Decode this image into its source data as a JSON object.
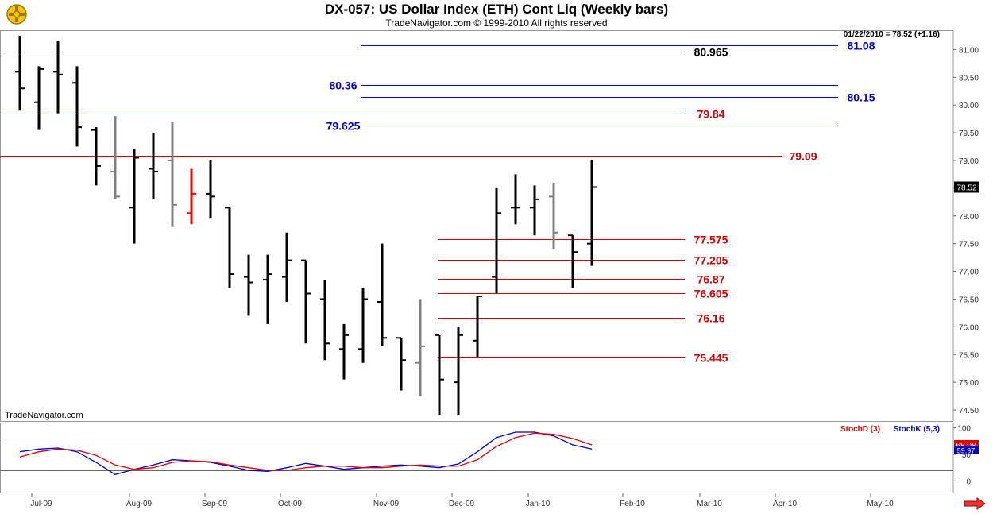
{
  "header": {
    "title": "DX-057:  US Dollar Index (ETH) Cont Liq  (Weekly bars)",
    "copyright": "TradeNavigator.com © 1999-2010 All rights reserved",
    "last_quote": "01/22/2010 = 78.52 (+1.16)",
    "watermark": "TradeNavigator.com"
  },
  "colors": {
    "up": "#000000",
    "neutral": "#808080",
    "highlight": "#ff0000",
    "blue_level": "#0000cc",
    "red_level": "#cc0000",
    "stoch_d": "#dd0000",
    "stoch_k": "#0000cc"
  },
  "chart_data": [
    {
      "type": "bar",
      "subtype": "ohlc",
      "ylim": [
        74.3,
        81.35
      ],
      "y_ticks": [
        74.5,
        75.0,
        75.5,
        76.0,
        76.5,
        77.0,
        77.5,
        78.0,
        78.5,
        79.0,
        79.5,
        80.0,
        80.5,
        81.0
      ],
      "y_tick_labels": [
        "74.50",
        "75.00",
        "75.50",
        "76.00",
        "76.50",
        "77.00",
        "77.50",
        "78.00",
        "78.50",
        "79.00",
        "79.50",
        "80.00",
        "80.50",
        "81.00"
      ],
      "x_axis_labels": [
        "Jul-09",
        "Aug-09",
        "Sep-09",
        "Oct-09",
        "Nov-09",
        "Dec-09",
        "Jan-10",
        "Feb-10",
        "Mar-10",
        "Apr-10",
        "May-10"
      ],
      "last_price_label": "78.52",
      "bars": [
        {
          "o": 80.6,
          "h": 81.25,
          "l": 79.9,
          "c": 80.3,
          "color": "up"
        },
        {
          "o": 80.05,
          "h": 80.7,
          "l": 79.55,
          "c": 80.65,
          "color": "up"
        },
        {
          "o": 80.6,
          "h": 81.15,
          "l": 79.85,
          "c": 80.55,
          "color": "up"
        },
        {
          "o": 80.4,
          "h": 80.7,
          "l": 79.25,
          "c": 79.6,
          "color": "up"
        },
        {
          "o": 79.55,
          "h": 79.6,
          "l": 78.55,
          "c": 78.9,
          "color": "up"
        },
        {
          "o": 78.8,
          "h": 79.8,
          "l": 78.3,
          "c": 78.35,
          "color": "neutral"
        },
        {
          "o": 78.15,
          "h": 79.2,
          "l": 77.5,
          "c": 79.05,
          "color": "up"
        },
        {
          "o": 78.85,
          "h": 79.5,
          "l": 78.3,
          "c": 78.8,
          "color": "up"
        },
        {
          "o": 79.0,
          "h": 79.7,
          "l": 77.8,
          "c": 78.2,
          "color": "neutral"
        },
        {
          "o": 78.05,
          "h": 78.85,
          "l": 77.85,
          "c": 78.4,
          "color": "highlight"
        },
        {
          "o": 78.4,
          "h": 79.0,
          "l": 77.95,
          "c": 78.35,
          "color": "up"
        },
        {
          "o": 78.15,
          "h": 78.15,
          "l": 76.7,
          "c": 76.95,
          "color": "up"
        },
        {
          "o": 76.9,
          "h": 77.3,
          "l": 76.2,
          "c": 76.8,
          "color": "up"
        },
        {
          "o": 76.85,
          "h": 77.3,
          "l": 76.05,
          "c": 76.95,
          "color": "up"
        },
        {
          "o": 76.9,
          "h": 77.7,
          "l": 76.45,
          "c": 77.2,
          "color": "up"
        },
        {
          "o": 77.2,
          "h": 77.2,
          "l": 75.7,
          "c": 76.6,
          "color": "up"
        },
        {
          "o": 76.5,
          "h": 76.85,
          "l": 75.4,
          "c": 75.7,
          "color": "up"
        },
        {
          "o": 75.6,
          "h": 76.05,
          "l": 75.05,
          "c": 75.85,
          "color": "up"
        },
        {
          "o": 75.6,
          "h": 76.7,
          "l": 75.35,
          "c": 76.5,
          "color": "up"
        },
        {
          "o": 76.45,
          "h": 77.5,
          "l": 75.65,
          "c": 75.8,
          "color": "up"
        },
        {
          "o": 75.8,
          "h": 75.8,
          "l": 74.85,
          "c": 75.4,
          "color": "up"
        },
        {
          "o": 75.35,
          "h": 76.5,
          "l": 74.75,
          "c": 75.65,
          "color": "neutral"
        },
        {
          "o": 75.85,
          "h": 75.85,
          "l": 74.4,
          "c": 75.05,
          "color": "up"
        },
        {
          "o": 75.0,
          "h": 76.0,
          "l": 74.4,
          "c": 75.85,
          "color": "up"
        },
        {
          "o": 75.75,
          "h": 76.55,
          "l": 75.45,
          "c": 76.55,
          "color": "up"
        },
        {
          "o": 76.9,
          "h": 78.5,
          "l": 76.6,
          "c": 78.05,
          "color": "up"
        },
        {
          "o": 78.15,
          "h": 78.75,
          "l": 77.85,
          "c": 78.15,
          "color": "up"
        },
        {
          "o": 78.15,
          "h": 78.55,
          "l": 77.65,
          "c": 78.3,
          "color": "up"
        },
        {
          "o": 78.35,
          "h": 78.6,
          "l": 77.4,
          "c": 77.7,
          "color": "neutral"
        },
        {
          "o": 77.65,
          "h": 77.65,
          "l": 76.7,
          "c": 77.35,
          "color": "up"
        },
        {
          "o": 77.5,
          "h": 79.0,
          "l": 77.1,
          "c": 78.52,
          "color": "up"
        }
      ],
      "levels": [
        {
          "value": 81.08,
          "label": "81.08",
          "color": "blue_level",
          "from": "Nov-09",
          "to_label": "1065"
        },
        {
          "value": 80.965,
          "label": "80.965",
          "color": "up",
          "from": "Jul-09",
          "to_label": "855"
        },
        {
          "value": 80.36,
          "label": "80.36",
          "color": "blue_level",
          "from": "Nov-09",
          "to_label": "450"
        },
        {
          "value": 80.15,
          "label": "80.15",
          "color": "blue_level",
          "from": "Nov-09",
          "to_label": "1065"
        },
        {
          "value": 79.84,
          "label": "79.84",
          "color": "red_level",
          "from": "Jul-09",
          "to_label": "855"
        },
        {
          "value": 79.625,
          "label": "79.625",
          "color": "blue_level",
          "from": "Nov-09",
          "to_label": "450"
        },
        {
          "value": 79.09,
          "label": "79.09",
          "color": "red_level",
          "from": "Jul-09",
          "to_label": "975"
        },
        {
          "value": 77.575,
          "label": "77.575",
          "color": "red_level",
          "from": "Dec-09",
          "to_label": "855"
        },
        {
          "value": 77.205,
          "label": "77.205",
          "color": "red_level",
          "from": "Dec-09",
          "to_label": "855"
        },
        {
          "value": 76.87,
          "label": "76.87",
          "color": "red_level",
          "from": "Dec-09",
          "to_label": "855"
        },
        {
          "value": 76.605,
          "label": "76.605",
          "color": "red_level",
          "from": "Dec-09",
          "to_label": "855"
        },
        {
          "value": 76.16,
          "label": "76.16",
          "color": "red_level",
          "from": "Dec-09",
          "to_label": "855"
        },
        {
          "value": 75.445,
          "label": "75.445",
          "color": "red_level",
          "from": "Dec-09",
          "to_label": "855"
        }
      ]
    },
    {
      "type": "line",
      "title": "",
      "ylim": [
        -10,
        110
      ],
      "y_ticks": [
        0,
        50,
        100
      ],
      "reference_lines": [
        20,
        80
      ],
      "legend": [
        "StochD (3)",
        "StochK (5,3)"
      ],
      "value_labels": [
        {
          "value": "68.08",
          "series": "StochD (3)"
        },
        {
          "value": "59.97",
          "series": "StochK (5,3)"
        }
      ],
      "series": [
        {
          "name": "StochK (5,3)",
          "color": "stoch_k",
          "values": [
            55,
            60,
            62,
            55,
            35,
            12,
            22,
            30,
            40,
            38,
            35,
            28,
            20,
            18,
            25,
            33,
            28,
            22,
            25,
            28,
            30,
            28,
            25,
            32,
            55,
            82,
            92,
            92,
            85,
            68,
            60
          ]
        },
        {
          "name": "StochD (3)",
          "color": "stoch_d",
          "values": [
            45,
            55,
            60,
            58,
            48,
            30,
            22,
            25,
            35,
            38,
            36,
            30,
            25,
            20,
            20,
            25,
            28,
            28,
            25,
            25,
            28,
            30,
            28,
            28,
            40,
            65,
            82,
            90,
            88,
            80,
            68
          ]
        }
      ]
    }
  ]
}
